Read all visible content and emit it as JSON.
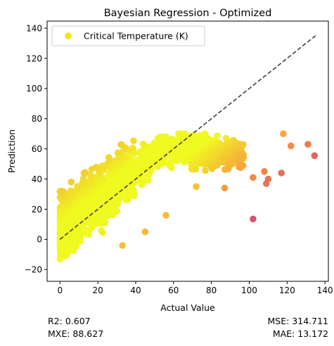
{
  "chart_data": {
    "type": "scatter",
    "title": "Bayesian Regression - Optimized",
    "xlabel": "Actual Value",
    "ylabel": "Prediction",
    "xlim": [
      -6.8,
      141.8
    ],
    "ylim": [
      -27.8,
      144.7
    ],
    "xticks": [
      0,
      20,
      40,
      60,
      80,
      100,
      120,
      140
    ],
    "yticks": [
      -20,
      0,
      20,
      40,
      60,
      80,
      100,
      120,
      140
    ],
    "grid": false,
    "legend": {
      "label": "Critical Temperature (K)",
      "placement": "top-left",
      "marker_color": "#f7e225"
    },
    "identity_line": {
      "from": [
        0,
        0
      ],
      "to": [
        135,
        135
      ],
      "style": "dashed",
      "color": "#404040"
    },
    "colormap": "plasma",
    "color_range": [
      15,
      140
    ],
    "sample_points": [
      {
        "x": 102,
        "y": 13.5
      },
      {
        "x": 134.5,
        "y": 55.5
      },
      {
        "x": 131,
        "y": 63
      },
      {
        "x": 117,
        "y": 44
      },
      {
        "x": 122,
        "y": 62
      },
      {
        "x": 118,
        "y": 70
      },
      {
        "x": 110,
        "y": 40
      },
      {
        "x": 109,
        "y": 37
      },
      {
        "x": 108,
        "y": 45
      },
      {
        "x": 102,
        "y": 41
      },
      {
        "x": 56,
        "y": 16
      },
      {
        "x": 45,
        "y": 5
      },
      {
        "x": 33,
        "y": -4
      },
      {
        "x": 87,
        "y": 34
      },
      {
        "x": 72,
        "y": 35
      },
      {
        "x": 75,
        "y": 69
      }
    ]
  },
  "metrics": {
    "r2": "R2: 0.607",
    "mxe": "MXE: 88.627",
    "mse": "MSE: 314.711",
    "mae": "MAE: 13.172"
  }
}
